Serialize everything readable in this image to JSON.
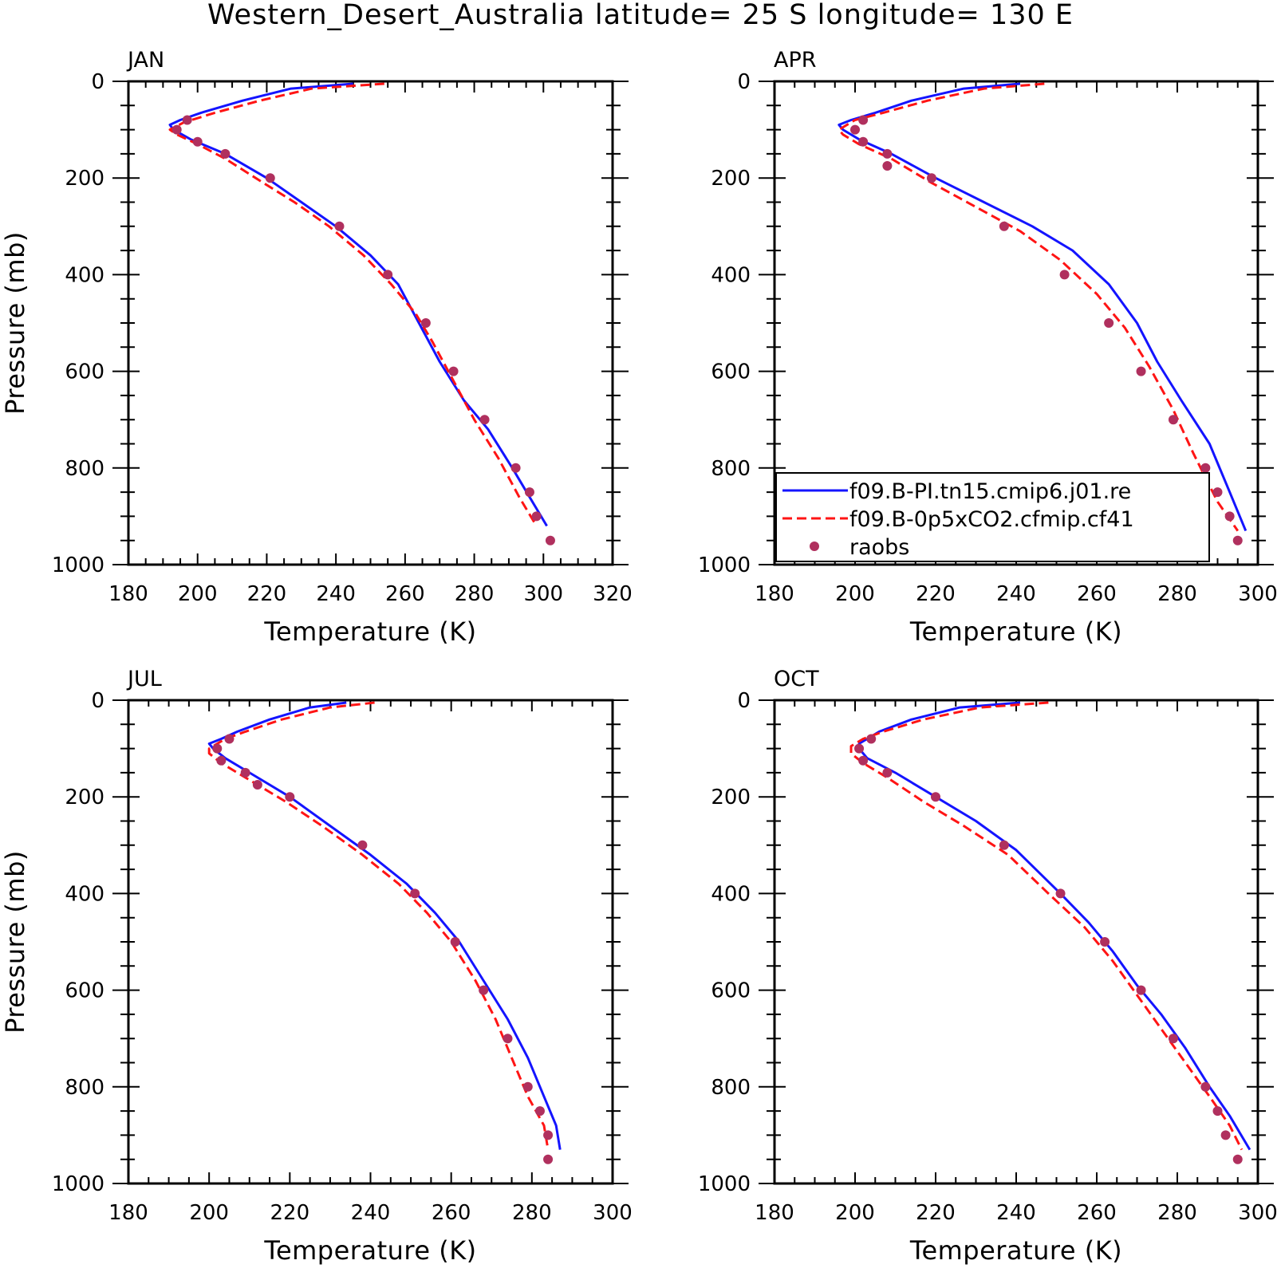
{
  "figure": {
    "title": "Western_Desert_Australia  latitude= 25 S longitude= 130 E"
  },
  "legend": {
    "items": [
      {
        "label": "f09.B-PI.tn15.cmip6.j01.re",
        "style": "solid",
        "color": "#1414ff"
      },
      {
        "label": "f09.B-0p5xCO2.cfmip.cf41",
        "style": "dashed",
        "color": "#ff1414"
      },
      {
        "label": "raobs",
        "style": "marker",
        "color": "#b0305e"
      }
    ]
  },
  "chart_data": [
    {
      "type": "line",
      "panel": "JAN",
      "xlabel": "Temperature (K)",
      "ylabel": "Pressure (mb)",
      "xlim": [
        180,
        320
      ],
      "xticks": [
        180,
        200,
        220,
        240,
        260,
        280,
        300,
        320
      ],
      "ylim": [
        1000,
        0
      ],
      "yticks": [
        0,
        200,
        400,
        600,
        800,
        1000
      ],
      "series": [
        {
          "color": "#1414ff",
          "style": "solid",
          "x": [
            245,
            227,
            213,
            201,
            195,
            192,
            193,
            198,
            208,
            220,
            230,
            240,
            250,
            258,
            264,
            270,
            277,
            284,
            291,
            296,
            301
          ],
          "y": [
            5,
            15,
            40,
            65,
            80,
            90,
            100,
            120,
            150,
            200,
            250,
            300,
            360,
            420,
            500,
            580,
            660,
            720,
            800,
            860,
            920
          ]
        },
        {
          "color": "#ff1414",
          "style": "dashed",
          "x": [
            254,
            233,
            218,
            205,
            196,
            192,
            194,
            200,
            208,
            219,
            228,
            238,
            248,
            256,
            263,
            268,
            274,
            280,
            287,
            293,
            298
          ],
          "y": [
            5,
            15,
            40,
            65,
            85,
            100,
            110,
            130,
            160,
            210,
            250,
            300,
            360,
            420,
            480,
            540,
            620,
            700,
            780,
            860,
            920
          ]
        }
      ],
      "points": {
        "name": "raobs",
        "x": [
          197,
          194,
          200,
          208,
          221,
          241,
          255,
          266,
          274,
          283,
          292,
          296,
          298,
          302
        ],
        "y": [
          80,
          100,
          125,
          150,
          200,
          300,
          400,
          500,
          600,
          700,
          800,
          850,
          900,
          950
        ]
      }
    },
    {
      "type": "line",
      "panel": "APR",
      "xlabel": "Temperature (K)",
      "ylabel": "",
      "xlim": [
        180,
        300
      ],
      "xticks": [
        180,
        200,
        220,
        240,
        260,
        280,
        300
      ],
      "ylim": [
        1000,
        0
      ],
      "yticks": [
        0,
        200,
        400,
        600,
        800,
        1000
      ],
      "series": [
        {
          "color": "#1414ff",
          "style": "solid",
          "x": [
            241,
            227,
            214,
            205,
            199,
            196,
            197,
            201,
            209,
            220,
            232,
            244,
            254,
            263,
            270,
            275,
            281,
            288,
            293,
            297
          ],
          "y": [
            5,
            15,
            40,
            65,
            80,
            90,
            100,
            120,
            150,
            200,
            250,
            300,
            350,
            420,
            500,
            580,
            660,
            750,
            850,
            930
          ]
        },
        {
          "color": "#ff1414",
          "style": "dashed",
          "x": [
            247,
            232,
            218,
            207,
            200,
            196,
            197,
            201,
            209,
            219,
            230,
            241,
            251,
            260,
            267,
            273,
            279,
            284,
            290,
            295
          ],
          "y": [
            5,
            15,
            40,
            65,
            80,
            100,
            110,
            130,
            160,
            210,
            260,
            310,
            370,
            440,
            510,
            590,
            680,
            770,
            870,
            930
          ]
        }
      ],
      "points": {
        "name": "raobs",
        "x": [
          202,
          200,
          202,
          208,
          208,
          219,
          237,
          252,
          263,
          271,
          279,
          287,
          290,
          293,
          295
        ],
        "y": [
          80,
          100,
          125,
          150,
          175,
          200,
          300,
          400,
          500,
          600,
          700,
          800,
          850,
          900,
          950
        ]
      }
    },
    {
      "type": "line",
      "panel": "JUL",
      "xlabel": "Temperature (K)",
      "ylabel": "Pressure (mb)",
      "xlim": [
        180,
        300
      ],
      "xticks": [
        180,
        200,
        220,
        240,
        260,
        280,
        300
      ],
      "ylim": [
        1000,
        0
      ],
      "yticks": [
        0,
        200,
        400,
        600,
        800,
        1000
      ],
      "series": [
        {
          "color": "#1414ff",
          "style": "solid",
          "x": [
            234,
            225,
            215,
            207,
            203,
            200,
            201,
            204,
            210,
            220,
            230,
            240,
            249,
            256,
            262,
            268,
            274,
            279,
            283,
            286,
            287
          ],
          "y": [
            5,
            15,
            40,
            65,
            80,
            90,
            100,
            120,
            150,
            200,
            260,
            320,
            380,
            440,
            500,
            580,
            660,
            740,
            820,
            880,
            930
          ]
        },
        {
          "color": "#ff1414",
          "style": "dashed",
          "x": [
            241,
            230,
            218,
            209,
            204,
            200,
            200,
            203,
            209,
            219,
            228,
            238,
            247,
            254,
            260,
            266,
            271,
            275,
            279,
            283,
            284
          ],
          "y": [
            5,
            15,
            40,
            65,
            80,
            100,
            110,
            130,
            160,
            210,
            260,
            320,
            380,
            440,
            500,
            580,
            660,
            740,
            820,
            880,
            930
          ]
        }
      ],
      "points": {
        "name": "raobs",
        "x": [
          205,
          202,
          203,
          209,
          212,
          220,
          238,
          251,
          261,
          268,
          274,
          279,
          282,
          284,
          284
        ],
        "y": [
          80,
          100,
          125,
          150,
          175,
          200,
          300,
          400,
          500,
          600,
          700,
          800,
          850,
          900,
          950
        ]
      }
    },
    {
      "type": "line",
      "panel": "OCT",
      "xlabel": "Temperature (K)",
      "ylabel": "",
      "xlim": [
        180,
        300
      ],
      "xticks": [
        180,
        200,
        220,
        240,
        260,
        280,
        300
      ],
      "ylim": [
        1000,
        0
      ],
      "yticks": [
        0,
        200,
        400,
        600,
        800,
        1000
      ],
      "series": [
        {
          "color": "#1414ff",
          "style": "solid",
          "x": [
            241,
            226,
            214,
            206,
            203,
            201,
            201,
            203,
            210,
            220,
            230,
            240,
            251,
            258,
            264,
            270,
            276,
            282,
            288,
            293,
            298
          ],
          "y": [
            5,
            15,
            40,
            65,
            80,
            90,
            100,
            120,
            150,
            200,
            250,
            310,
            400,
            460,
            520,
            590,
            650,
            720,
            800,
            860,
            930
          ]
        },
        {
          "color": "#ff1414",
          "style": "dashed",
          "x": [
            248,
            231,
            217,
            207,
            202,
            199,
            199,
            202,
            208,
            217,
            227,
            238,
            248,
            257,
            264,
            270,
            276,
            282,
            288,
            293,
            296
          ],
          "y": [
            5,
            15,
            40,
            65,
            80,
            95,
            110,
            130,
            160,
            210,
            260,
            320,
            400,
            470,
            540,
            610,
            680,
            750,
            820,
            880,
            930
          ]
        }
      ],
      "points": {
        "name": "raobs",
        "x": [
          204,
          201,
          202,
          208,
          220,
          237,
          251,
          262,
          271,
          279,
          287,
          290,
          292,
          295
        ],
        "y": [
          80,
          100,
          125,
          150,
          200,
          300,
          400,
          500,
          600,
          700,
          800,
          850,
          900,
          950
        ]
      }
    }
  ]
}
